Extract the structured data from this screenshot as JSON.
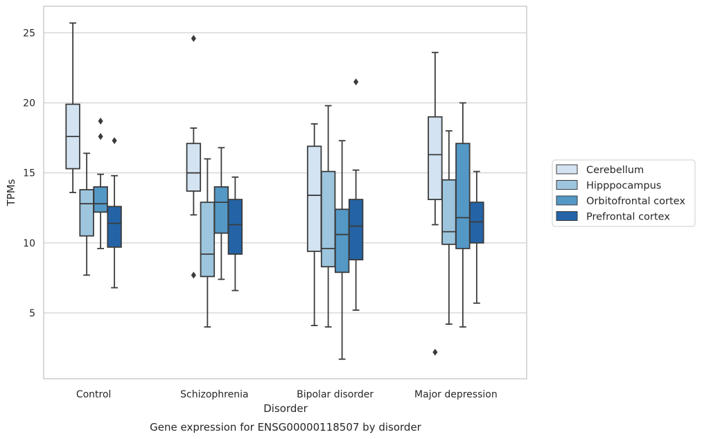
{
  "chart_data": {
    "type": "boxplot",
    "title": "",
    "caption": "Gene expression for ENSG00000118507 by disorder",
    "xlabel": "Disorder",
    "ylabel": "TPMs",
    "categories": [
      "Control",
      "Schizophrenia",
      "Bipolar disorder",
      "Major depression"
    ],
    "yticks": [
      5,
      10,
      15,
      20,
      25
    ],
    "ylim": [
      0.3,
      26.9
    ],
    "grid": "horizontal",
    "legend_position": "center-right",
    "series": [
      {
        "name": "Cerebellum",
        "color": "#d3e3f2",
        "boxes": [
          {
            "whislo": 13.6,
            "q1": 15.3,
            "med": 17.6,
            "q3": 19.9,
            "whishi": 25.7,
            "fliers": []
          },
          {
            "whislo": 12.0,
            "q1": 13.7,
            "med": 15.0,
            "q3": 17.1,
            "whishi": 18.2,
            "fliers": [
              24.6,
              7.7
            ]
          },
          {
            "whislo": 4.1,
            "q1": 9.4,
            "med": 13.4,
            "q3": 16.9,
            "whishi": 18.5,
            "fliers": []
          },
          {
            "whislo": 11.3,
            "q1": 13.1,
            "med": 16.3,
            "q3": 19.0,
            "whishi": 23.6,
            "fliers": [
              2.2
            ]
          }
        ]
      },
      {
        "name": "Hipppocampus",
        "color": "#9dc5de",
        "boxes": [
          {
            "whislo": 7.7,
            "q1": 10.5,
            "med": 12.8,
            "q3": 13.8,
            "whishi": 16.4,
            "fliers": []
          },
          {
            "whislo": 4.0,
            "q1": 7.6,
            "med": 9.2,
            "q3": 12.9,
            "whishi": 16.0,
            "fliers": []
          },
          {
            "whislo": 4.0,
            "q1": 8.3,
            "med": 9.6,
            "q3": 15.1,
            "whishi": 19.8,
            "fliers": []
          },
          {
            "whislo": 4.2,
            "q1": 9.9,
            "med": 10.8,
            "q3": 14.5,
            "whishi": 18.0,
            "fliers": []
          }
        ]
      },
      {
        "name": "Orbitofrontal cortex",
        "color": "#5498c6",
        "boxes": [
          {
            "whislo": 9.6,
            "q1": 12.2,
            "med": 12.8,
            "q3": 14.0,
            "whishi": 14.9,
            "fliers": [
              18.7,
              17.6
            ]
          },
          {
            "whislo": 7.4,
            "q1": 10.7,
            "med": 12.9,
            "q3": 14.0,
            "whishi": 16.8,
            "fliers": []
          },
          {
            "whislo": 1.7,
            "q1": 7.9,
            "med": 10.6,
            "q3": 12.4,
            "whishi": 17.3,
            "fliers": []
          },
          {
            "whislo": 4.0,
            "q1": 9.6,
            "med": 11.8,
            "q3": 17.1,
            "whishi": 20.0,
            "fliers": []
          }
        ]
      },
      {
        "name": "Prefrontal cortex",
        "color": "#2464a6",
        "boxes": [
          {
            "whislo": 6.8,
            "q1": 9.7,
            "med": 11.4,
            "q3": 12.6,
            "whishi": 14.8,
            "fliers": [
              17.3
            ]
          },
          {
            "whislo": 6.6,
            "q1": 9.2,
            "med": 11.3,
            "q3": 13.1,
            "whishi": 14.7,
            "fliers": []
          },
          {
            "whislo": 5.2,
            "q1": 8.8,
            "med": 11.2,
            "q3": 13.1,
            "whishi": 15.2,
            "fliers": [
              21.5
            ]
          },
          {
            "whislo": 5.7,
            "q1": 10.0,
            "med": 11.5,
            "q3": 12.9,
            "whishi": 15.1,
            "fliers": []
          }
        ]
      }
    ]
  }
}
